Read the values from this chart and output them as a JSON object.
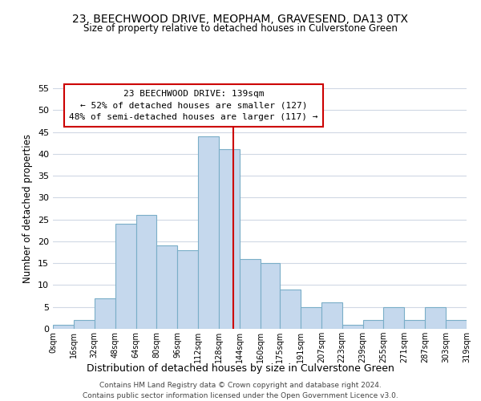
{
  "title": "23, BEECHWOOD DRIVE, MEOPHAM, GRAVESEND, DA13 0TX",
  "subtitle": "Size of property relative to detached houses in Culverstone Green",
  "xlabel": "Distribution of detached houses by size in Culverstone Green",
  "ylabel": "Number of detached properties",
  "bin_edges": [
    0,
    16,
    32,
    48,
    64,
    80,
    96,
    112,
    128,
    144,
    160,
    175,
    191,
    207,
    223,
    239,
    255,
    271,
    287,
    303,
    319
  ],
  "bin_counts": [
    1,
    2,
    7,
    24,
    26,
    19,
    18,
    44,
    41,
    16,
    15,
    9,
    5,
    6,
    1,
    2,
    5,
    2,
    5,
    2
  ],
  "bar_color": "#c5d8ed",
  "bar_edgecolor": "#7aaec8",
  "vline_x": 139,
  "vline_color": "#cc0000",
  "annotation_title": "23 BEECHWOOD DRIVE: 139sqm",
  "annotation_line1": "← 52% of detached houses are smaller (127)",
  "annotation_line2": "48% of semi-detached houses are larger (117) →",
  "annotation_box_edgecolor": "#cc0000",
  "annotation_box_facecolor": "#ffffff",
  "xlim": [
    0,
    319
  ],
  "ylim": [
    0,
    55
  ],
  "yticks": [
    0,
    5,
    10,
    15,
    20,
    25,
    30,
    35,
    40,
    45,
    50,
    55
  ],
  "xtick_labels": [
    "0sqm",
    "16sqm",
    "32sqm",
    "48sqm",
    "64sqm",
    "80sqm",
    "96sqm",
    "112sqm",
    "128sqm",
    "144sqm",
    "160sqm",
    "175sqm",
    "191sqm",
    "207sqm",
    "223sqm",
    "239sqm",
    "255sqm",
    "271sqm",
    "287sqm",
    "303sqm",
    "319sqm"
  ],
  "xtick_positions": [
    0,
    16,
    32,
    48,
    64,
    80,
    96,
    112,
    128,
    144,
    160,
    175,
    191,
    207,
    223,
    239,
    255,
    271,
    287,
    303,
    319
  ],
  "footer_line1": "Contains HM Land Registry data © Crown copyright and database right 2024.",
  "footer_line2": "Contains public sector information licensed under the Open Government Licence v3.0.",
  "background_color": "#ffffff",
  "grid_color": "#d0d8e4"
}
